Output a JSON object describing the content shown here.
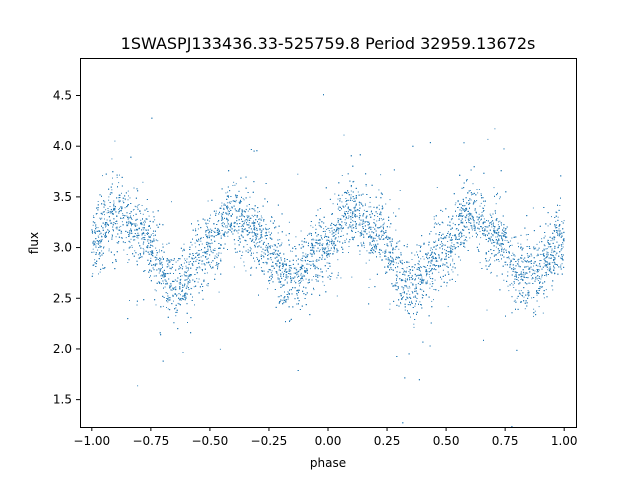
{
  "chart_data": {
    "type": "scatter",
    "title": "1SWASPJ133436.33-525759.8 Period 32959.13672s",
    "xlabel": "phase",
    "ylabel": "flux",
    "xlim": [
      -1.05,
      1.05
    ],
    "ylim": [
      1.23,
      4.87
    ],
    "xticks": [
      -1.0,
      -0.75,
      -0.5,
      -0.25,
      0.0,
      0.25,
      0.5,
      0.75,
      1.0
    ],
    "xtick_labels": [
      "−1.00",
      "−0.75",
      "−0.50",
      "−0.25",
      "0.00",
      "0.25",
      "0.50",
      "0.75",
      "1.00"
    ],
    "yticks": [
      1.5,
      2.0,
      2.5,
      3.0,
      3.5,
      4.0,
      4.5
    ],
    "ytick_labels": [
      "1.5",
      "2.0",
      "2.5",
      "3.0",
      "3.5",
      "4.0",
      "4.5"
    ],
    "grid": false,
    "legend": "none",
    "marker_color": "#1f77b4",
    "series": [
      {
        "x_range": [
          -1.0,
          1.0
        ],
        "phase_points": [
          {
            "x": -1.0,
            "y": 3.05
          },
          {
            "x": -0.9,
            "y": 3.3
          },
          {
            "x": -0.8,
            "y": 3.15
          },
          {
            "x": -0.65,
            "y": 2.62
          },
          {
            "x": -0.5,
            "y": 3.0
          },
          {
            "x": -0.4,
            "y": 3.33
          },
          {
            "x": -0.3,
            "y": 3.1
          },
          {
            "x": -0.15,
            "y": 2.68
          },
          {
            "x": 0.0,
            "y": 3.05
          },
          {
            "x": 0.1,
            "y": 3.33
          },
          {
            "x": 0.2,
            "y": 3.15
          },
          {
            "x": 0.35,
            "y": 2.62
          },
          {
            "x": 0.5,
            "y": 3.0
          },
          {
            "x": 0.6,
            "y": 3.35
          },
          {
            "x": 0.7,
            "y": 3.1
          },
          {
            "x": 0.85,
            "y": 2.7
          },
          {
            "x": 1.0,
            "y": 3.05
          }
        ]
      }
    ]
  }
}
